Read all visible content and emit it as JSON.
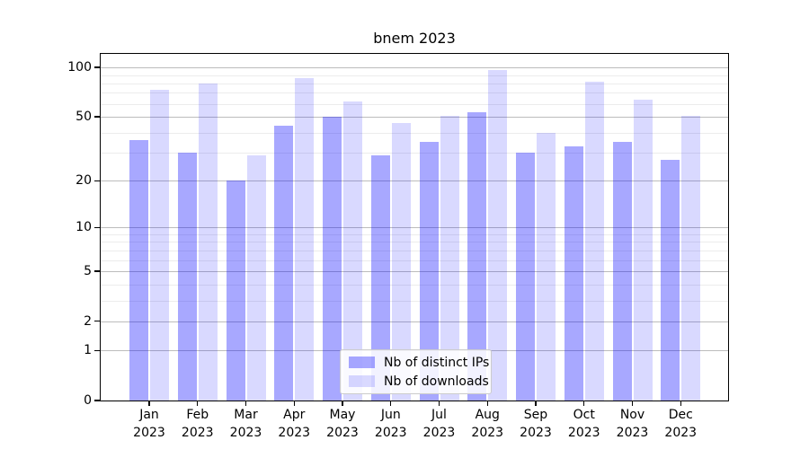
{
  "title": "bnem 2023",
  "chart_data": {
    "type": "bar",
    "title": "bnem 2023",
    "months": [
      "Jan",
      "Feb",
      "Mar",
      "Apr",
      "May",
      "Jun",
      "Jul",
      "Aug",
      "Sep",
      "Oct",
      "Nov",
      "Dec"
    ],
    "year_label": "2023",
    "series": [
      {
        "name": "Nb of distinct IPs",
        "color": "rgba(0,0,255,0.34)",
        "values": [
          36,
          30,
          20,
          44,
          50,
          29,
          35,
          53,
          30,
          33,
          35,
          27
        ]
      },
      {
        "name": "Nb of downloads",
        "color": "rgba(0,0,255,0.15)",
        "values": [
          73,
          80,
          29,
          86,
          62,
          46,
          51,
          96,
          40,
          82,
          64,
          51
        ]
      }
    ],
    "yscale": "log1p",
    "yticks": [
      0,
      1,
      2,
      5,
      10,
      20,
      50,
      100
    ],
    "ylim": [
      0,
      121
    ],
    "grid": true,
    "legend_position": "lower center",
    "colors": {
      "major_grid": "#bcbcbc",
      "minor_grid": "#ececec",
      "axis": "#000000"
    }
  }
}
